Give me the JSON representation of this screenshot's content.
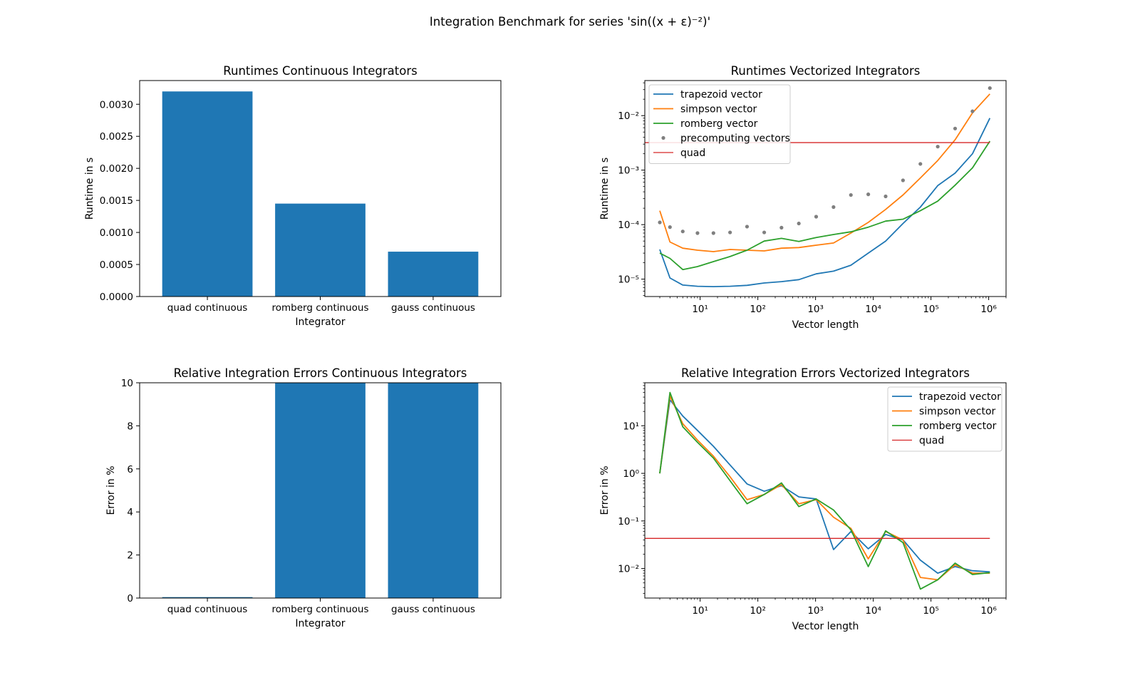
{
  "figure": {
    "suptitle": "Integration Benchmark for series 'sin((x + ε)⁻²)'",
    "colors": {
      "bar": "#1f77b4",
      "trapezoid": "#1f77b4",
      "simpson": "#ff7f0e",
      "romberg": "#2ca02c",
      "precompute": "#7f7f7f",
      "quad": "#d62728"
    }
  },
  "chart_data": [
    {
      "type": "bar",
      "title": "Runtimes Continuous Integrators",
      "xlabel": "Integrator",
      "ylabel": "Runtime in s",
      "categories": [
        "quad continuous",
        "romberg continuous",
        "gauss continuous"
      ],
      "values": [
        0.0032,
        0.00145,
        0.0007
      ],
      "ylim": [
        0,
        0.00337
      ],
      "yticks": [
        0,
        0.0005,
        0.001,
        0.0015,
        0.002,
        0.0025,
        0.003
      ],
      "ytick_labels": [
        "0.0000",
        "0.0005",
        "0.0010",
        "0.0015",
        "0.0020",
        "0.0025",
        "0.0030"
      ]
    },
    {
      "type": "line",
      "title": "Runtimes Vectorized Integrators",
      "xlabel": "Vector length",
      "ylabel": "Runtime in s",
      "xscale": "log",
      "yscale": "log",
      "xlim": [
        1.1,
        2000000
      ],
      "ylim": [
        4.8e-06,
        0.044
      ],
      "xticks": [
        10,
        100,
        1000,
        10000,
        100000,
        1000000
      ],
      "yticks": [
        1e-05,
        0.0001,
        0.001,
        0.01
      ],
      "legend_position": "upper left",
      "x": [
        2,
        3,
        5,
        9,
        17,
        33,
        65,
        129,
        257,
        513,
        1025,
        2049,
        4097,
        8193,
        16385,
        32769,
        65537,
        131073,
        262145,
        524289,
        1048577
      ],
      "series": [
        {
          "name": "trapezoid vector",
          "style": "line",
          "color_key": "trapezoid",
          "values": [
            3.5e-05,
            1.05e-05,
            7.8e-06,
            7.4e-06,
            7.3e-06,
            7.4e-06,
            7.7e-06,
            8.5e-06,
            9e-06,
            9.8e-06,
            1.25e-05,
            1.4e-05,
            1.8e-05,
            3e-05,
            5e-05,
            0.000105,
            0.00021,
            0.00052,
            0.00088,
            0.002,
            0.009
          ]
        },
        {
          "name": "simpson vector",
          "style": "line",
          "color_key": "simpson",
          "values": [
            0.00018,
            4.8e-05,
            3.7e-05,
            3.4e-05,
            3.2e-05,
            3.5e-05,
            3.4e-05,
            3.3e-05,
            3.7e-05,
            3.8e-05,
            4.2e-05,
            4.6e-05,
            7e-05,
            0.00011,
            0.00019,
            0.00035,
            0.00072,
            0.0015,
            0.0036,
            0.0112,
            0.025
          ]
        },
        {
          "name": "romberg vector",
          "style": "line",
          "color_key": "romberg",
          "values": [
            3e-05,
            2.4e-05,
            1.5e-05,
            1.7e-05,
            2.1e-05,
            2.6e-05,
            3.4e-05,
            5e-05,
            5.6e-05,
            4.9e-05,
            5.8e-05,
            6.6e-05,
            7.4e-05,
            9e-05,
            0.000116,
            0.000126,
            0.00018,
            0.00027,
            0.00053,
            0.0011,
            0.0034
          ]
        },
        {
          "name": "precomputing vectors",
          "style": "points",
          "color_key": "precompute",
          "values": [
            0.00011,
            9e-05,
            7.5e-05,
            7e-05,
            7e-05,
            7.2e-05,
            9.2e-05,
            7.2e-05,
            8.8e-05,
            0.000105,
            0.00014,
            0.00021,
            0.00035,
            0.00036,
            0.00033,
            0.00065,
            0.0013,
            0.0027,
            0.0058,
            0.012,
            0.032
          ]
        },
        {
          "name": "quad",
          "style": "hline",
          "color_key": "quad",
          "value": 0.0032
        }
      ]
    },
    {
      "type": "bar",
      "title": "Relative Integration Errors Continuous Integrators",
      "xlabel": "Integrator",
      "ylabel": "Error in %",
      "categories": [
        "quad continuous",
        "romberg continuous",
        "gauss continuous"
      ],
      "values": [
        0.043,
        10,
        10
      ],
      "ylim": [
        0,
        10
      ],
      "yticks": [
        0,
        2,
        4,
        6,
        8,
        10
      ],
      "ytick_labels": [
        "0",
        "2",
        "4",
        "6",
        "8",
        "10"
      ]
    },
    {
      "type": "line",
      "title": "Relative Integration Errors Vectorized Integrators",
      "xlabel": "Vector length",
      "ylabel": "Error in %",
      "xscale": "log",
      "yscale": "log",
      "xlim": [
        1.1,
        2000000
      ],
      "ylim": [
        0.0024,
        80
      ],
      "xticks": [
        10,
        100,
        1000,
        10000,
        100000,
        1000000
      ],
      "yticks": [
        0.01,
        0.1,
        1,
        10
      ],
      "legend_position": "upper right",
      "x": [
        2,
        3,
        5,
        9,
        17,
        33,
        65,
        129,
        257,
        513,
        1025,
        2049,
        4097,
        8193,
        16385,
        32769,
        65537,
        131073,
        262145,
        524289,
        1048577
      ],
      "series": [
        {
          "name": "trapezoid vector",
          "style": "line",
          "color_key": "trapezoid",
          "values": [
            1.0,
            35,
            16,
            8,
            3.7,
            1.5,
            0.6,
            0.42,
            0.55,
            0.32,
            0.29,
            0.025,
            0.06,
            0.026,
            0.052,
            0.04,
            0.015,
            0.008,
            0.011,
            0.009,
            0.0085
          ]
        },
        {
          "name": "simpson vector",
          "style": "line",
          "color_key": "simpson",
          "values": [
            1.0,
            42,
            11,
            5,
            2.3,
            0.85,
            0.28,
            0.36,
            0.58,
            0.23,
            0.28,
            0.12,
            0.07,
            0.016,
            0.06,
            0.04,
            0.0065,
            0.0058,
            0.012,
            0.008,
            0.008
          ]
        },
        {
          "name": "romberg vector",
          "style": "line",
          "color_key": "romberg",
          "values": [
            1.0,
            50,
            9.5,
            4.5,
            2.1,
            0.7,
            0.23,
            0.36,
            0.63,
            0.2,
            0.29,
            0.17,
            0.065,
            0.011,
            0.062,
            0.035,
            0.0037,
            0.0058,
            0.013,
            0.0075,
            0.0082
          ]
        },
        {
          "name": "quad",
          "style": "hline",
          "color_key": "quad",
          "value": 0.043
        }
      ]
    }
  ]
}
